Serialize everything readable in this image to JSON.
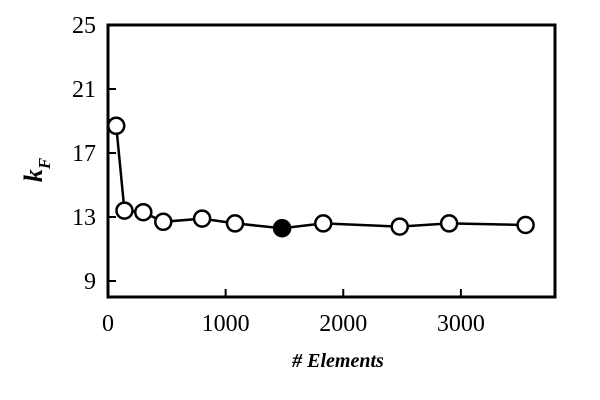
{
  "chart_data": {
    "type": "scatter",
    "xlabel": "# Elements",
    "ylabel_main": "k",
    "ylabel_sub": "F",
    "xlim": [
      0,
      3800
    ],
    "ylim": [
      8,
      25
    ],
    "xticks": [
      0,
      1000,
      2000,
      3000
    ],
    "yticks": [
      9,
      13,
      17,
      21,
      25
    ],
    "grid": false,
    "line_connected": true,
    "series": [
      {
        "x": [
          70,
          140,
          300,
          470,
          800,
          1080,
          1480,
          1830,
          2480,
          2900,
          3550
        ],
        "y": [
          18.7,
          13.4,
          13.3,
          12.7,
          12.9,
          12.6,
          12.3,
          12.6,
          12.4,
          12.6,
          12.5
        ],
        "filled": [
          false,
          false,
          false,
          false,
          false,
          false,
          true,
          false,
          false,
          false,
          false
        ]
      }
    ],
    "colors": {
      "marker_open_fill": "#ffffff",
      "marker_filled": "#000000",
      "line": "#000000"
    }
  }
}
